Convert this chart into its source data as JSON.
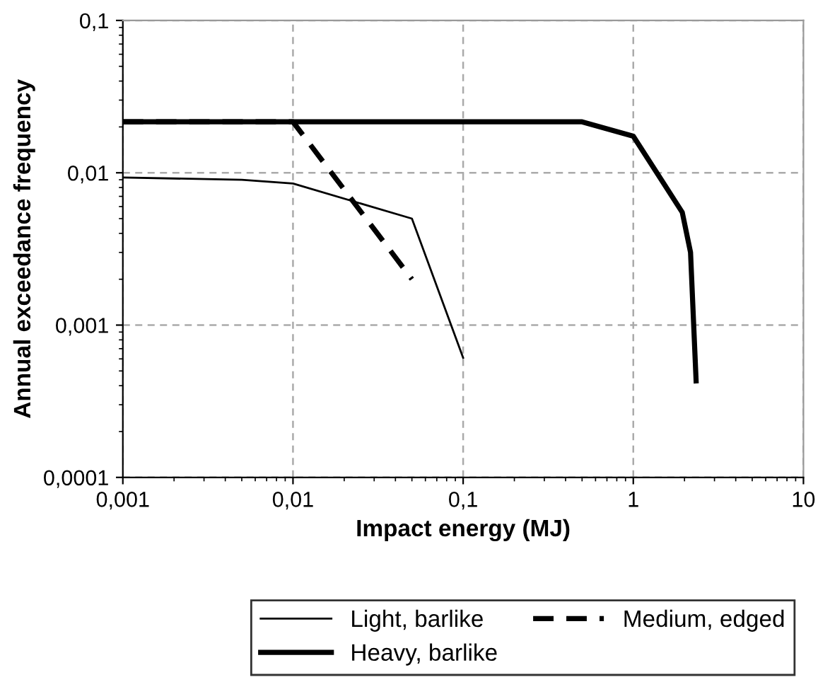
{
  "chart_data": {
    "type": "line",
    "xlabel": "Impact energy (MJ)",
    "ylabel": "Annual exceedance frequency",
    "log": "xy",
    "grid": true,
    "legend": "bottom",
    "xlim": [
      0.001,
      10
    ],
    "ylim": [
      0.0001,
      0.1
    ],
    "xticks": [
      {
        "value": 0.001,
        "label": "0,001"
      },
      {
        "value": 0.01,
        "label": "0,01"
      },
      {
        "value": 0.1,
        "label": "0,1"
      },
      1,
      10
    ],
    "yticks": [
      {
        "value": 0.0001,
        "label": "0,0001"
      },
      {
        "value": 0.001,
        "label": "0,001"
      },
      {
        "value": 0.01,
        "label": "0,01"
      },
      {
        "value": 0.1,
        "label": "0,1"
      }
    ],
    "series": [
      {
        "name": "Light, barlike",
        "color": "#000000",
        "line_style": "solid",
        "x": [
          0.001,
          0.005,
          0.01,
          0.05,
          0.1
        ],
        "values": [
          0.0093,
          0.009,
          0.0085,
          0.005,
          0.00061
        ]
      },
      {
        "name": "Medium, edged",
        "color": "#000000",
        "line_style": "dashed",
        "x": [
          0.001,
          0.01,
          0.05
        ],
        "values": [
          0.0216,
          0.0216,
          0.002
        ]
      },
      {
        "name": "Heavy, barlike",
        "color": "#000000",
        "line_style": "solid",
        "x": [
          0.001,
          0.5,
          1,
          1.94,
          2.17,
          2.34
        ],
        "values": [
          0.0216,
          0.0216,
          0.0174,
          0.0055,
          0.003,
          0.00043
        ]
      }
    ]
  }
}
